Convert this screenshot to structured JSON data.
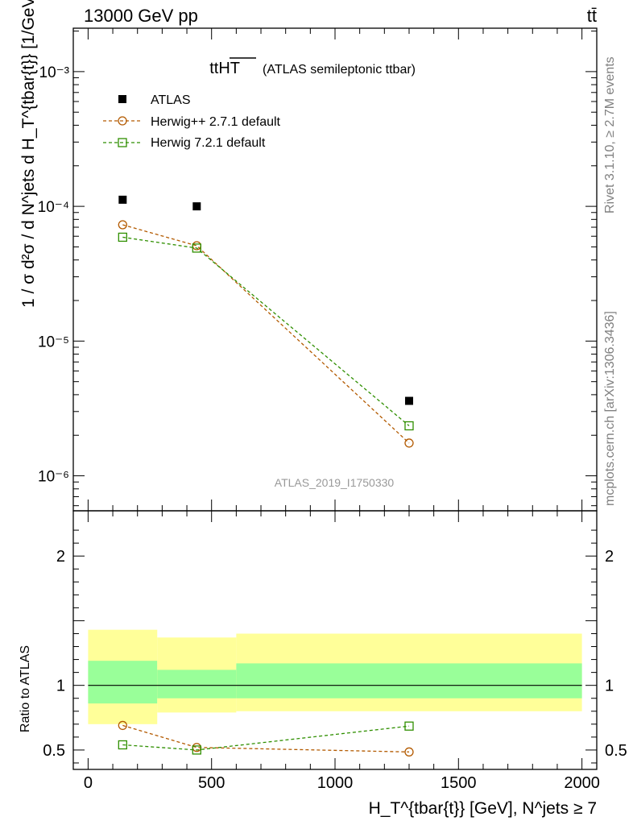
{
  "header": {
    "left": "13000 GeV pp",
    "right": "tt̄"
  },
  "side_labels": {
    "top": "Rivet 3.1.10, ≥ 2.7M events",
    "bottom": "mcplots.cern.ch [arXiv:1306.3436]"
  },
  "chart_data": [
    {
      "type": "scatter",
      "title": "ttHT",
      "subtitle": "(ATLAS semileptonic ttbar)",
      "watermark": "ATLAS_2019_I1750330",
      "ylabel": "1 / σ d²σ / d N^jets d H_T^{tbar{t}} [1/GeV]",
      "yscale": "log",
      "ylim": [
        5.5e-07,
        0.0021
      ],
      "xlim": [
        -60,
        2060
      ],
      "yticks": [
        {
          "value": 1e-06,
          "label": "10⁻⁶"
        },
        {
          "value": 1e-05,
          "label": "10⁻⁵"
        },
        {
          "value": 0.0001,
          "label": "10⁻⁴"
        },
        {
          "value": 0.001,
          "label": "10⁻³"
        }
      ],
      "legend_position": "top-left",
      "series": [
        {
          "name": "ATLAS",
          "marker": "filled-square",
          "color": "#000000",
          "line": false,
          "x": [
            140,
            440,
            1300
          ],
          "y": [
            0.000112,
            0.0001,
            3.6e-06
          ]
        },
        {
          "name": "Herwig++ 2.7.1 default",
          "marker": "open-circle",
          "color": "#b35a00",
          "line": "dashed",
          "x": [
            140,
            440,
            1300
          ],
          "y": [
            7.3e-05,
            5.1e-05,
            1.75e-06
          ]
        },
        {
          "name": "Herwig 7.2.1 default",
          "marker": "open-square",
          "color": "#2f8f00",
          "line": "dashed",
          "x": [
            140,
            440,
            1300
          ],
          "y": [
            5.9e-05,
            4.9e-05,
            2.35e-06
          ]
        }
      ]
    },
    {
      "type": "scatter",
      "ylabel": "Ratio to ATLAS",
      "xlabel": "H_T^{tbar{t}} [GeV], N^jets ≥ 7",
      "xlim": [
        -60,
        2060
      ],
      "ylim": [
        0.35,
        2.35
      ],
      "xticks": [
        0,
        500,
        1000,
        1500,
        2000
      ],
      "yticks": [
        0.5,
        1,
        2
      ],
      "reference_line": 1,
      "bands": [
        {
          "x0": 0,
          "x1": 280,
          "outer": [
            0.7,
            1.43
          ],
          "inner": [
            0.86,
            1.19
          ]
        },
        {
          "x0": 280,
          "x1": 600,
          "outer": [
            0.79,
            1.37
          ],
          "inner": [
            0.9,
            1.12
          ]
        },
        {
          "x0": 600,
          "x1": 2000,
          "outer": [
            0.8,
            1.4
          ],
          "inner": [
            0.9,
            1.17
          ]
        }
      ],
      "band_colors": {
        "outer": "#ffff99",
        "inner": "#99ff99"
      },
      "series": [
        {
          "name": "Herwig++ 2.7.1 default",
          "marker": "open-circle",
          "color": "#b35a00",
          "x": [
            140,
            440,
            1300
          ],
          "y": [
            0.69,
            0.52,
            0.485
          ]
        },
        {
          "name": "Herwig 7.2.1 default",
          "marker": "open-square",
          "color": "#2f8f00",
          "x": [
            140,
            440,
            1300
          ],
          "y": [
            0.54,
            0.5,
            0.685
          ]
        }
      ]
    }
  ]
}
